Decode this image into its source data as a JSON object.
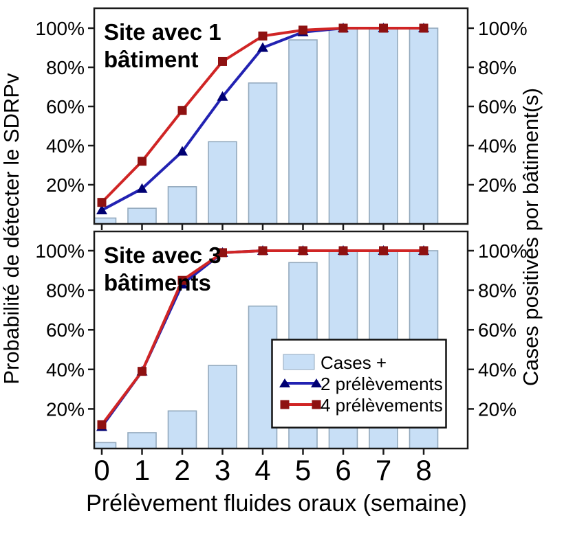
{
  "figure": {
    "x_axis": {
      "label": "Prélèvement fluides oraux (semaine)",
      "ticks": [
        "0",
        "1",
        "2",
        "3",
        "4",
        "5",
        "6",
        "7",
        "8"
      ]
    },
    "y_axis_left": {
      "label": "Probabilité de détecter le SDRPv",
      "ticks": [
        "20%",
        "40%",
        "60%",
        "80%",
        "100%"
      ]
    },
    "y_axis_right": {
      "label": "Cases positives por bâtiment(s)",
      "ticks": [
        "20%",
        "40%",
        "60%",
        "80%",
        "100%"
      ]
    },
    "legend": {
      "items": [
        {
          "label": "Cases +",
          "swatch": "bar"
        },
        {
          "label": "2 prélèvements",
          "swatch": "line-triangle"
        },
        {
          "label": "4 prélèvements",
          "swatch": "line-square"
        }
      ]
    },
    "colors": {
      "bar_fill": "#C8DFF6",
      "bar_stroke": "#93A9BD",
      "blue_line": "#2222B2",
      "blue_marker": "#000072",
      "red_line": "#D02525",
      "red_marker": "#8E1111",
      "axis": "#1A1A1A"
    }
  },
  "chart_data": [
    {
      "type": "bar+line",
      "title": "Site avec 1 bâtiment",
      "title_lines": [
        "Site avec 1",
        "bâtiment"
      ],
      "categories": [
        0,
        1,
        2,
        3,
        4,
        5,
        6,
        7,
        8
      ],
      "xlabel": "Prélèvement fluides oraux (semaine)",
      "ylabel_left": "Probabilité de détecter le SDRPv",
      "ylabel_right": "Cases positives por bâtiment(s)",
      "ylim": [
        0,
        112
      ],
      "yticks": [
        20,
        40,
        60,
        80,
        100
      ],
      "grid": false,
      "legend_position": "bottom-panel-center-right",
      "bars": {
        "name": "Cases +",
        "values": [
          3,
          8,
          19,
          42,
          72,
          94,
          100,
          100,
          100
        ]
      },
      "series": [
        {
          "name": "2 prélèvements",
          "marker": "triangle",
          "values": [
            7,
            18,
            37,
            65,
            90,
            98,
            100,
            100,
            100
          ]
        },
        {
          "name": "4 prélèvements",
          "marker": "square",
          "values": [
            11,
            32,
            58,
            83,
            96,
            99,
            100,
            100,
            100
          ]
        }
      ]
    },
    {
      "type": "bar+line",
      "title": "Site avec 3 bâtiments",
      "title_lines": [
        "Site avec 3",
        "bâtiments"
      ],
      "categories": [
        0,
        1,
        2,
        3,
        4,
        5,
        6,
        7,
        8
      ],
      "ylim": [
        0,
        112
      ],
      "yticks": [
        20,
        40,
        60,
        80,
        100
      ],
      "grid": false,
      "bars": {
        "name": "Cases +",
        "values": [
          3,
          8,
          19,
          42,
          72,
          94,
          100,
          100,
          100
        ]
      },
      "series": [
        {
          "name": "2 prélèvements",
          "marker": "triangle",
          "values": [
            11,
            39,
            83,
            99,
            100,
            100,
            100,
            100,
            100
          ]
        },
        {
          "name": "4 prélèvements",
          "marker": "square",
          "values": [
            12,
            39,
            85,
            99,
            100,
            100,
            100,
            100,
            100
          ]
        }
      ]
    }
  ]
}
